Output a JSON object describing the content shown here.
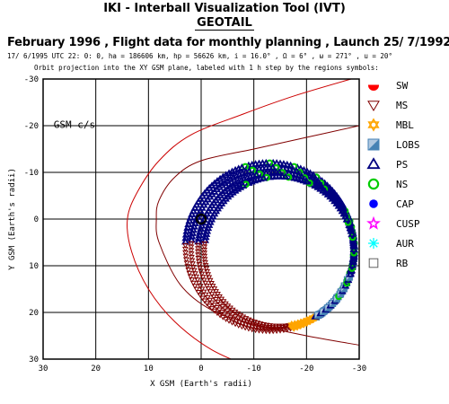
{
  "header": {
    "title": "IKI - Interball Visualization Tool (IVT)",
    "mission": "GEOTAIL",
    "subtitle": "February 1996 ,  Flight data for monthly planning ,   Launch 25/ 7/1992",
    "orbit_params": "17/ 6/1995 UTC 22: 0: 0, ha = 186606 km, hp = 56626 km, i = 16.0° , Ω =   6° , ω = 271° , u =  20°",
    "projection_note": "Orbit projection into the XY GSM plane, labeled with 1 h step by the regions symbols:"
  },
  "chart_data": {
    "type": "scatter",
    "panel_label": "GSM c/s",
    "xlabel": "X GSM (Earth's radii)",
    "ylabel": "Y GSM (Earth's radii)",
    "xlim": [
      30,
      -30
    ],
    "ylim": [
      -30,
      30
    ],
    "x_ticks": [
      30,
      20,
      10,
      0,
      -10,
      -20,
      -30
    ],
    "y_ticks": [
      -30,
      -20,
      -10,
      0,
      10,
      20,
      30
    ],
    "grid": true,
    "legend_position": "right",
    "legend": [
      {
        "label": "SW",
        "color": "#ff0000",
        "icon": "sun-half-icon"
      },
      {
        "label": "MS",
        "color": "#800000",
        "icon": "triangle-down-outline-icon"
      },
      {
        "label": "MBL",
        "color": "#ffa500",
        "icon": "star-of-david-icon"
      },
      {
        "label": "LOBS",
        "color": "#4682b4",
        "icon": "half-filled-square-icon"
      },
      {
        "label": "PS",
        "color": "#000080",
        "icon": "triangle-up-outline-icon"
      },
      {
        "label": "NS",
        "color": "#00cc00",
        "icon": "circle-outline-icon"
      },
      {
        "label": "CAP",
        "color": "#0000ff",
        "icon": "filled-circle-icon"
      },
      {
        "label": "CUSP",
        "color": "#ff00ff",
        "icon": "star-outline-icon"
      },
      {
        "label": "AUR",
        "color": "#00ffff",
        "icon": "asterisk-icon"
      },
      {
        "label": "RB",
        "color": "#606060",
        "icon": "square-outline-icon"
      }
    ],
    "earth": {
      "x": 0,
      "y": 0
    },
    "boundaries": [
      {
        "name": "bow shock",
        "color": "#cc0000",
        "points": [
          [
            -30,
            -30.5
          ],
          [
            -18,
            -26.5
          ],
          [
            -8,
            -22.5
          ],
          [
            2,
            -18
          ],
          [
            8,
            -12.5
          ],
          [
            12,
            -6
          ],
          [
            14,
            0
          ],
          [
            13.2,
            7
          ],
          [
            10,
            15
          ],
          [
            5,
            22
          ],
          [
            -2,
            28
          ],
          [
            -10,
            32
          ]
        ]
      },
      {
        "name": "magnetopause",
        "color": "#800000",
        "points": [
          [
            -30,
            -20
          ],
          [
            -20,
            -17.5
          ],
          [
            -10,
            -15
          ],
          [
            0,
            -12.5
          ],
          [
            5,
            -9
          ],
          [
            8,
            -4
          ],
          [
            8.5,
            0
          ],
          [
            8,
            5
          ],
          [
            4,
            14
          ],
          [
            -2,
            19.5
          ],
          [
            -10,
            22.5
          ],
          [
            -20,
            25
          ],
          [
            -30,
            27
          ]
        ]
      }
    ],
    "orbit_loops": [
      {
        "cx": -13,
        "cy": 6,
        "rx": 16,
        "ry": 18
      },
      {
        "cx": -13.6,
        "cy": 6.3,
        "rx": 15.5,
        "ry": 17.3
      },
      {
        "cx": -14.2,
        "cy": 6.6,
        "rx": 14.8,
        "ry": 16.6
      },
      {
        "cx": -14.8,
        "cy": 6.9,
        "rx": 14.2,
        "ry": 16.0
      }
    ],
    "orbit_start_angle_deg": 186,
    "orbit_points_per_loop": 150
  }
}
